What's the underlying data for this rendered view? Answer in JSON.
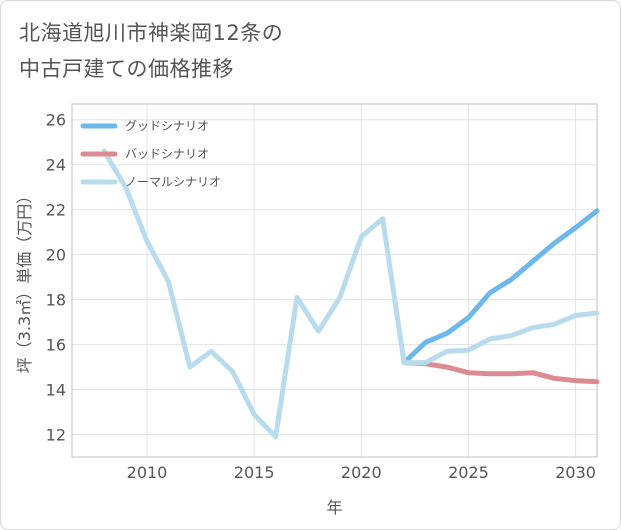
{
  "title_lines": [
    "北海道旭川市神楽岡12条の",
    "中古戸建ての価格推移"
  ],
  "colors": {
    "good": "#6cb8ea",
    "bad": "#dc8b91",
    "normal": "#b8dced",
    "grid": "#e3e3e3",
    "text": "#555555"
  },
  "chart_data": {
    "type": "line",
    "title": "北海道旭川市神楽岡12条の中古戸建ての価格推移",
    "xlabel": "年",
    "ylabel": "坪（3.3㎡）単価（万円）",
    "xlim": [
      2006.5,
      2031
    ],
    "ylim": [
      11,
      26.7
    ],
    "x_ticks": [
      2010,
      2015,
      2020,
      2025,
      2030
    ],
    "y_ticks": [
      12,
      14,
      16,
      18,
      20,
      22,
      24,
      26
    ],
    "legend_position": "top-left",
    "series": [
      {
        "key": "good",
        "name": "グッドシナリオ",
        "x": [
          2022,
          2023,
          2024,
          2025,
          2026,
          2027,
          2028,
          2029,
          2030,
          2031
        ],
        "y": [
          15.2,
          16.1,
          16.5,
          17.2,
          18.3,
          18.9,
          19.7,
          20.5,
          21.2,
          21.95
        ]
      },
      {
        "key": "bad",
        "name": "バッドシナリオ",
        "x": [
          2022,
          2023,
          2024,
          2025,
          2026,
          2027,
          2028,
          2029,
          2030,
          2031
        ],
        "y": [
          15.2,
          15.15,
          15.0,
          14.75,
          14.7,
          14.7,
          14.75,
          14.5,
          14.4,
          14.35
        ]
      },
      {
        "key": "normal",
        "name": "ノーマルシナリオ",
        "x": [
          2008,
          2009,
          2010,
          2011,
          2012,
          2013,
          2014,
          2015,
          2016,
          2017,
          2018,
          2019,
          2020,
          2021,
          2022,
          2023,
          2024,
          2025,
          2026,
          2027,
          2028,
          2029,
          2030,
          2031
        ],
        "y": [
          24.6,
          23.0,
          20.6,
          18.8,
          15.0,
          15.7,
          14.8,
          12.9,
          11.9,
          18.1,
          16.6,
          18.1,
          20.8,
          21.6,
          15.2,
          15.2,
          15.7,
          15.75,
          16.25,
          16.4,
          16.75,
          16.9,
          17.3,
          17.4
        ]
      }
    ]
  }
}
